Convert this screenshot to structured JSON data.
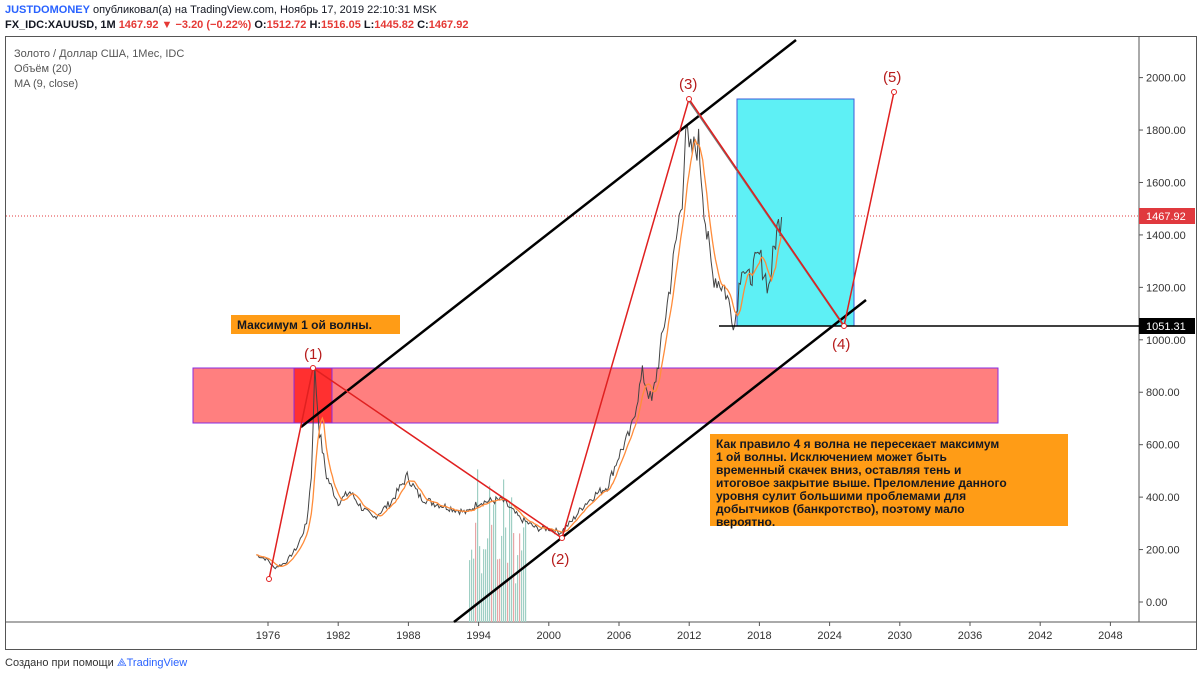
{
  "header": {
    "author": "JUSTDOMONEY",
    "published_text": " опубликовал(а) на TradingView.com, Ноябрь 17, 2019 22:10:31 MSK",
    "symbol": "FX_IDC:XAUUSD, 1M",
    "price": "1467.92",
    "change_arrow": "▼",
    "change": "−3.20 (−0.22%)",
    "ohlc": [
      {
        "key": "O:",
        "value": "1512.72"
      },
      {
        "key": "H:",
        "value": "1516.05"
      },
      {
        "key": "L:",
        "value": "1445.82"
      },
      {
        "key": "C:",
        "value": "1467.92"
      }
    ]
  },
  "legend": {
    "title": "Золото / Доллар США, 1Мес, IDC",
    "volume": "Объём (20)",
    "ma": "MA (9, close)"
  },
  "axes": {
    "y_ticks": [
      "2000.00",
      "1800.00",
      "1600.00",
      "1400.00",
      "1200.00",
      "1000.00",
      "800.00",
      "600.00",
      "400.00",
      "200.00",
      "0.00"
    ],
    "x_ticks": [
      "1976",
      "1982",
      "1988",
      "1994",
      "2000",
      "2006",
      "2012",
      "2018",
      "2024",
      "2030",
      "2036",
      "2042",
      "2048"
    ],
    "price_label": "1467.92",
    "level_label": "1051.31"
  },
  "annotations": {
    "wave_max_label": "Максимум 1 ой волны.",
    "note": "Как правило 4 я волна не пересекает максимум 1 ой волны. Исключением может быть временный скачек вниз, оставляя тень и итоговое закрытие выше. Преломление данного уровня сулит большими проблемами для добытчиков (банкротство), поэтому мало вероятно.",
    "waves": [
      "(1)",
      "(2)",
      "(3)",
      "(4)",
      "(5)"
    ]
  },
  "colors": {
    "wave": "#e02020",
    "channel": "#000000",
    "pink_zone": "#ff7f7f",
    "cyan_zone": "#5ef0f5",
    "note_bg": "#ff9c16",
    "price": "#e0393e"
  },
  "chart_data": {
    "type": "line",
    "title": "Золото / Доллар США, 1Мес, IDC",
    "series": [
      {
        "values_note": "",
        "x": [
          1975,
          1976,
          1976.5,
          1977.5,
          1978.5,
          1979.3,
          1979.7,
          1980.0,
          1980.4,
          1981.0,
          1982.0,
          1983.0,
          1984.0,
          1985.0,
          1986.5,
          1987.9,
          1989.0,
          1990.0,
          1991.5,
          1993.0,
          1994.0,
          1995.0,
          1996.0,
          1997.5,
          1999.0,
          2000.0,
          2001.0,
          2002.0,
          2003.0,
          2004.0,
          2005.0,
          2006.0,
          2007.0,
          2008.0,
          2008.8,
          2009.5,
          2010.5,
          2011.4,
          2011.7,
          2012.0,
          2012.8,
          2013.5,
          2014.0,
          2015.0,
          2015.9,
          2016.5,
          2017.0,
          2018.0,
          2018.8,
          2019.5,
          2019.9
        ],
        "y": [
          180,
          160,
          130,
          150,
          210,
          300,
          480,
          880,
          650,
          480,
          380,
          420,
          360,
          320,
          380,
          480,
          400,
          380,
          360,
          340,
          380,
          385,
          390,
          320,
          280,
          280,
          265,
          310,
          370,
          410,
          440,
          560,
          650,
          870,
          760,
          950,
          1250,
          1550,
          1820,
          1700,
          1750,
          1400,
          1250,
          1200,
          1060,
          1300,
          1220,
          1320,
          1200,
          1420,
          1468
        ]
      }
    ],
    "xlim": [
      1970,
      2050
    ],
    "ylim": [
      -100,
      2150
    ]
  }
}
